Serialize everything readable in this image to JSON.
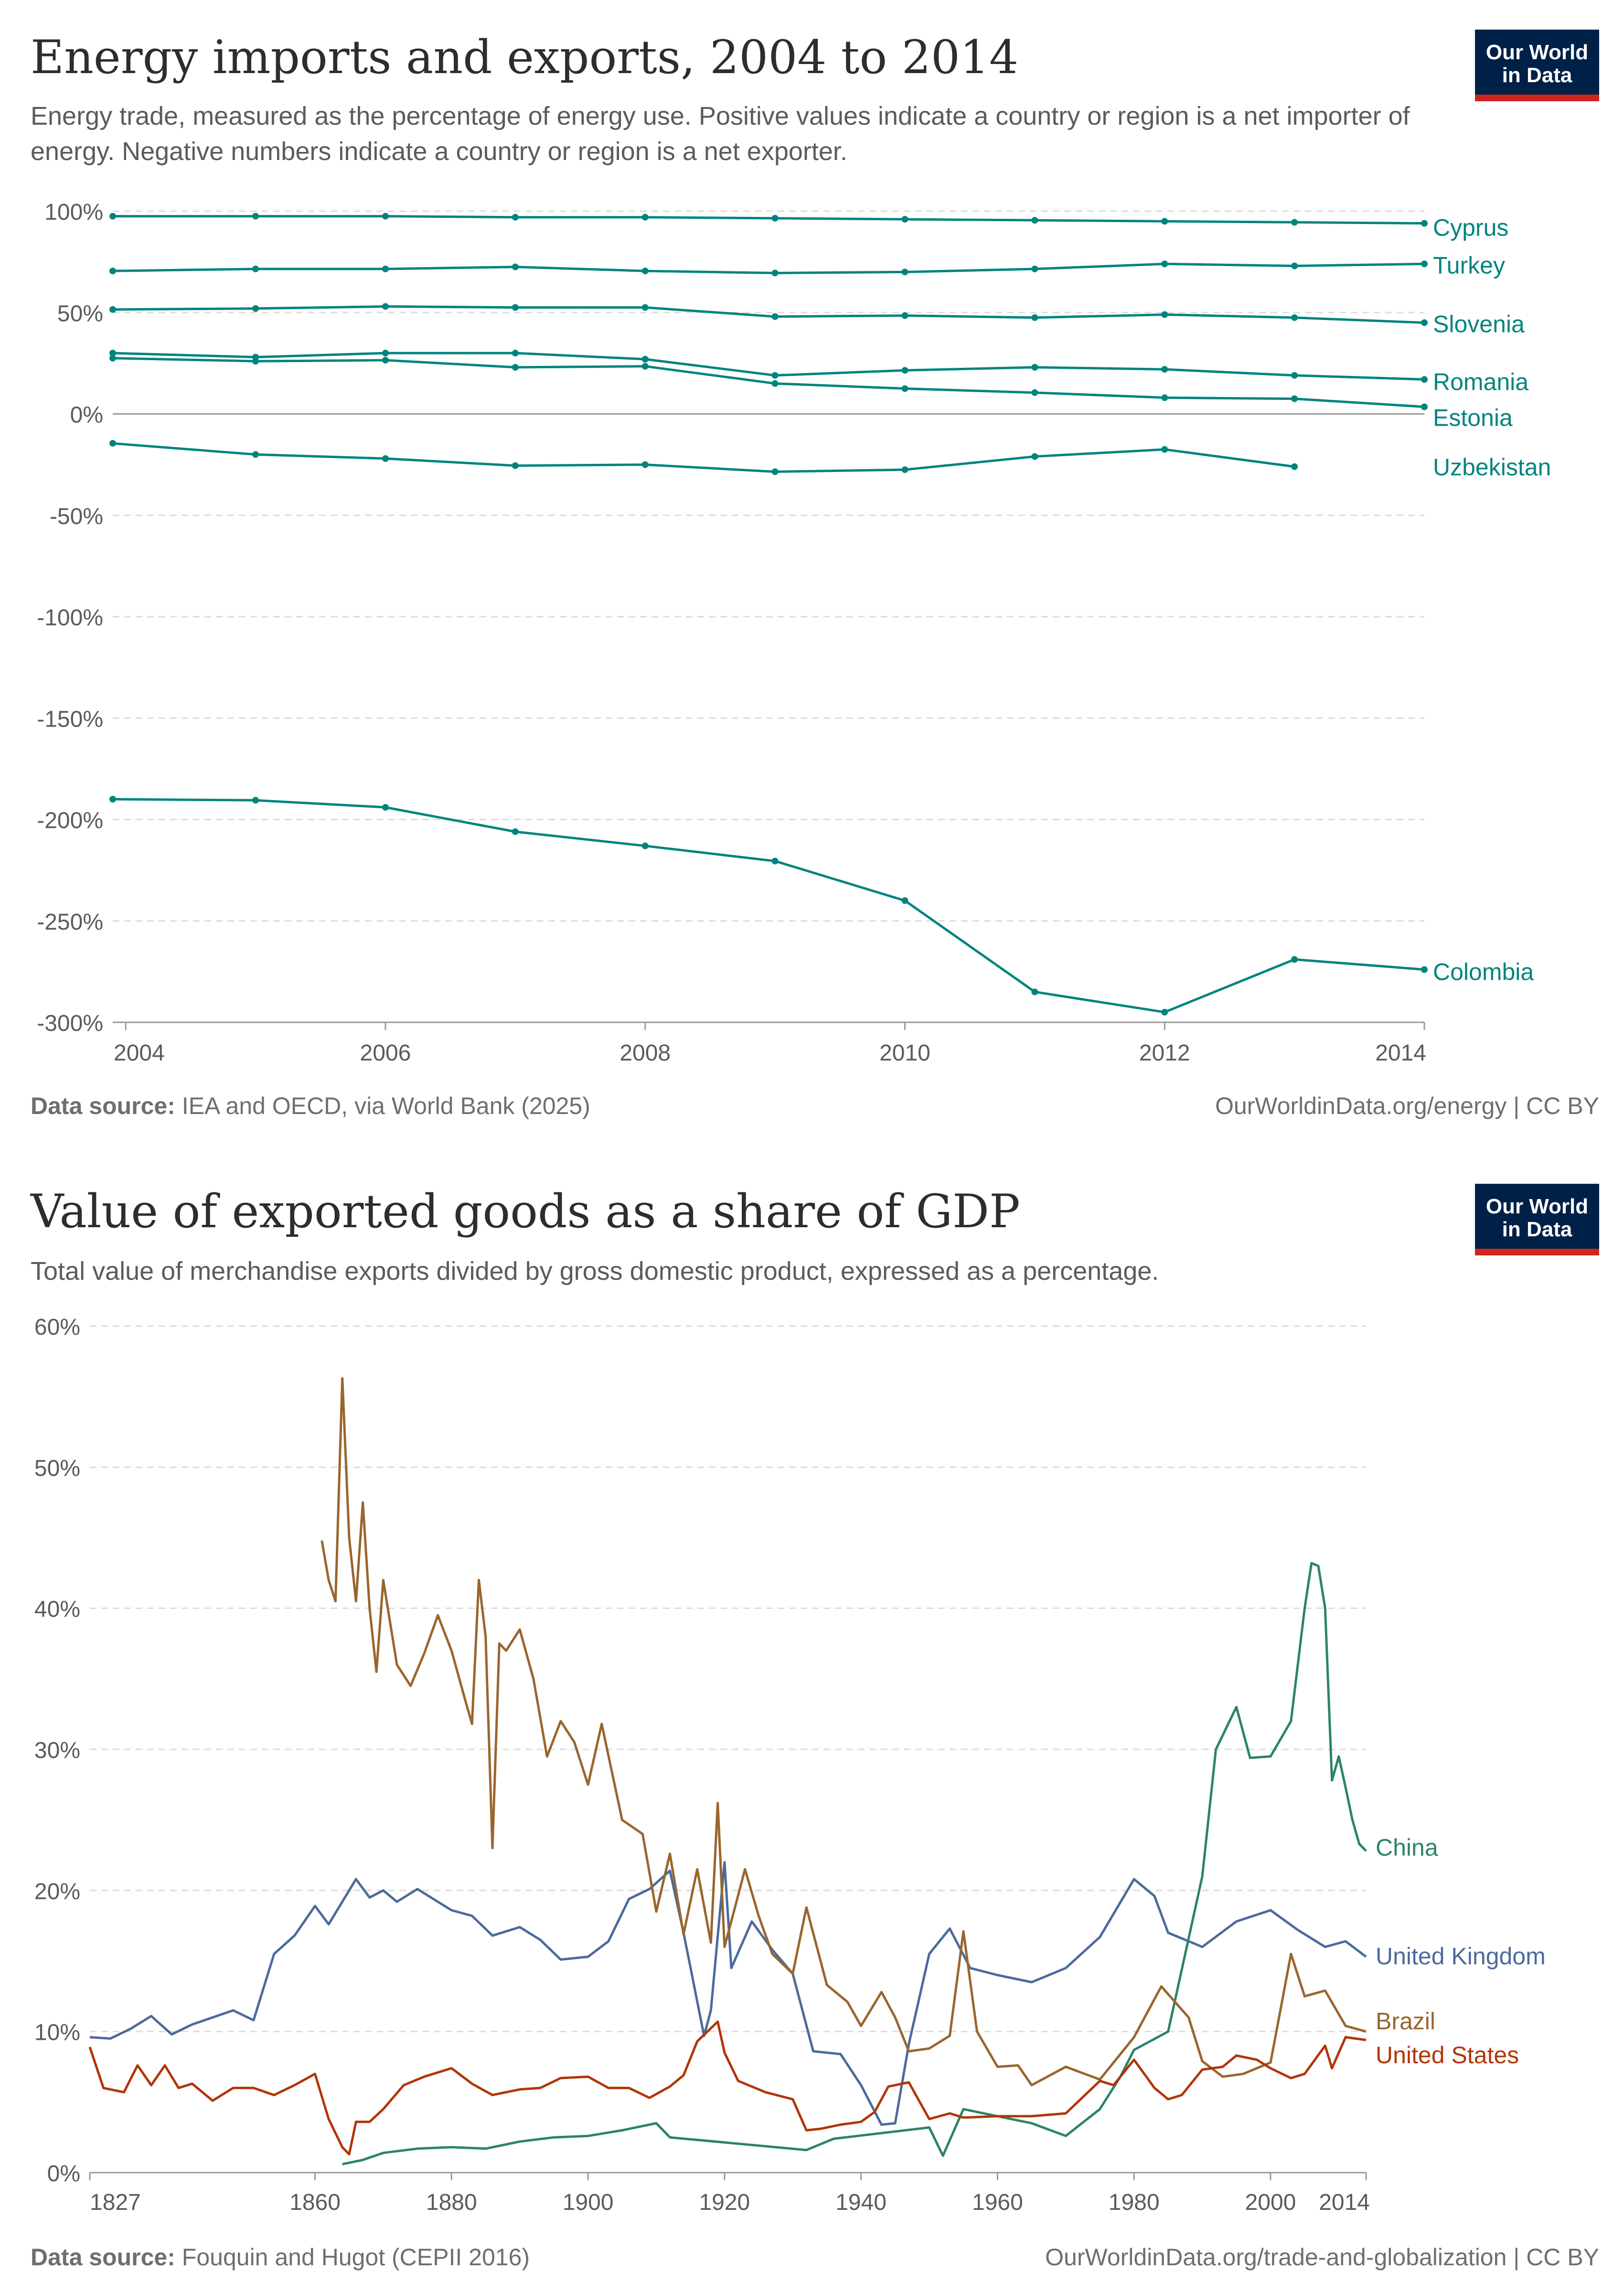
{
  "colors": {
    "energy": "#00847e",
    "china": "#2c8465",
    "uk": "#4c6a9c",
    "brazil": "#9a652e",
    "us": "#b13507",
    "grid": "#dddddd",
    "axis": "#5b5b5b",
    "zero": "#9a9a9a"
  },
  "logo": {
    "line1": "Our World",
    "line2": "in Data"
  },
  "chart_data": [
    {
      "type": "line",
      "title": "Energy imports and exports, 2004 to 2014",
      "subtitle": "Energy trade, measured as the percentage of energy use. Positive values indicate a country or region is a net importer of energy. Negative numbers indicate a country or region is a net exporter.",
      "xlabel": "",
      "ylabel": "",
      "xlim": [
        2003.9,
        2014
      ],
      "ylim": [
        -300,
        100
      ],
      "yticks": [
        100,
        50,
        0,
        -50,
        -100,
        -150,
        -200,
        -250,
        -300
      ],
      "ytick_labels": [
        "100%",
        "50%",
        "0%",
        "-50%",
        "-100%",
        "-150%",
        "-200%",
        "-250%",
        "-300%"
      ],
      "xticks": [
        2004,
        2006,
        2008,
        2010,
        2012,
        2014
      ],
      "xtick_labels": [
        "2004",
        "2006",
        "2008",
        "2010",
        "2012",
        "2014"
      ],
      "grid": true,
      "legend": "right",
      "series": [
        {
          "name": "Cyprus",
          "x": [
            2003.9,
            2005,
            2006,
            2007,
            2008,
            2009,
            2010,
            2011,
            2012,
            2013,
            2014
          ],
          "values": [
            97.5,
            97.5,
            97.5,
            97,
            97,
            96.5,
            96,
            95.5,
            95,
            94.5,
            94
          ]
        },
        {
          "name": "Turkey",
          "x": [
            2003.9,
            2005,
            2006,
            2007,
            2008,
            2009,
            2010,
            2011,
            2012,
            2013,
            2014
          ],
          "values": [
            70.5,
            71.5,
            71.5,
            72.5,
            70.5,
            69.5,
            70,
            71.5,
            74,
            73,
            74
          ]
        },
        {
          "name": "Slovenia",
          "x": [
            2003.9,
            2005,
            2006,
            2007,
            2008,
            2009,
            2010,
            2011,
            2012,
            2013,
            2014
          ],
          "values": [
            51.5,
            52,
            53,
            52.5,
            52.5,
            48,
            48.5,
            47.5,
            49,
            47.5,
            45
          ]
        },
        {
          "name": "Romania",
          "x": [
            2003.9,
            2005,
            2006,
            2007,
            2008,
            2009,
            2010,
            2011,
            2012,
            2013,
            2014
          ],
          "values": [
            30,
            28,
            30,
            30,
            27,
            19,
            21.5,
            23,
            22,
            19,
            17
          ]
        },
        {
          "name": "Estonia",
          "x": [
            2003.9,
            2005,
            2006,
            2007,
            2008,
            2009,
            2010,
            2011,
            2012,
            2013,
            2014
          ],
          "values": [
            27.5,
            26,
            26.5,
            23,
            23.5,
            15,
            12.5,
            10.5,
            8,
            7.5,
            3.5
          ]
        },
        {
          "name": "Uzbekistan",
          "x": [
            2003.9,
            2005,
            2006,
            2007,
            2008,
            2009,
            2010,
            2011,
            2012,
            2013
          ],
          "values": [
            -14.5,
            -20,
            -22,
            -25.5,
            -25,
            -28.5,
            -27.5,
            -21,
            -17.5,
            -26
          ]
        },
        {
          "name": "Colombia",
          "x": [
            2003.9,
            2005,
            2006,
            2007,
            2008,
            2009,
            2010,
            2011,
            2012,
            2013,
            2014
          ],
          "values": [
            -190,
            -190.5,
            -194,
            -206,
            -213,
            -220.5,
            -240,
            -285,
            -295,
            -269,
            -274
          ]
        }
      ],
      "source_label": "Data source:",
      "source_text": "IEA and OECD, via World Bank (2025)",
      "footer_right": "OurWorldinData.org/energy | CC BY"
    },
    {
      "type": "line",
      "title": "Value of exported goods as a share of GDP",
      "subtitle": "Total value of merchandise exports divided by gross domestic product, expressed as a percentage.",
      "xlabel": "",
      "ylabel": "",
      "xlim": [
        1827,
        2014
      ],
      "ylim": [
        0,
        60
      ],
      "yticks": [
        60,
        50,
        40,
        30,
        20,
        10,
        0
      ],
      "ytick_labels": [
        "60%",
        "50%",
        "40%",
        "30%",
        "20%",
        "10%",
        "0%"
      ],
      "xticks": [
        1827,
        1860,
        1880,
        1900,
        1920,
        1940,
        1960,
        1980,
        2000,
        2014
      ],
      "xtick_labels": [
        "1827",
        "1860",
        "1880",
        "1900",
        "1920",
        "1940",
        "1960",
        "1980",
        "2000",
        "2014"
      ],
      "grid": true,
      "legend": "right",
      "series": [
        {
          "name": "China",
          "x": [
            1864,
            1867,
            1870,
            1875,
            1880,
            1885,
            1890,
            1895,
            1900,
            1905,
            1910,
            1912,
            1932,
            1936,
            1950,
            1952,
            1955,
            1960,
            1965,
            1970,
            1975,
            1978,
            1980,
            1985,
            1990,
            1992,
            1995,
            1997,
            2000,
            2003,
            2005,
            2006,
            2007,
            2008,
            2009,
            2010,
            2011,
            2012,
            2013,
            2014
          ],
          "values": [
            0.6,
            0.9,
            1.4,
            1.7,
            1.8,
            1.7,
            2.2,
            2.5,
            2.6,
            3.0,
            3.5,
            2.5,
            1.6,
            2.4,
            3.2,
            1.2,
            4.5,
            4.0,
            3.5,
            2.6,
            4.5,
            6.8,
            8.7,
            10.0,
            21.0,
            30.0,
            33.0,
            29.4,
            29.5,
            32.0,
            40.0,
            43.2,
            43.0,
            40.0,
            27.8,
            29.5,
            27.3,
            25.0,
            23.3,
            22.8
          ]
        },
        {
          "name": "United Kingdom",
          "x": [
            1827,
            1830,
            1833,
            1836,
            1839,
            1842,
            1845,
            1848,
            1851,
            1854,
            1857,
            1860,
            1862,
            1866,
            1868,
            1870,
            1872,
            1875,
            1880,
            1883,
            1886,
            1890,
            1893,
            1896,
            1900,
            1903,
            1906,
            1909,
            1912,
            1914,
            1917,
            1918,
            1920,
            1921,
            1924,
            1927,
            1930,
            1933,
            1937,
            1940,
            1943,
            1945,
            1947,
            1950,
            1953,
            1956,
            1960,
            1965,
            1970,
            1975,
            1980,
            1983,
            1985,
            1990,
            1995,
            2000,
            2004,
            2008,
            2011,
            2014
          ],
          "values": [
            9.6,
            9.5,
            10.2,
            11.1,
            9.8,
            10.5,
            11.0,
            11.5,
            10.8,
            15.5,
            16.8,
            18.9,
            17.6,
            20.8,
            19.5,
            20.0,
            19.2,
            20.1,
            18.6,
            18.2,
            16.8,
            17.4,
            16.5,
            15.1,
            15.3,
            16.4,
            19.4,
            20.1,
            21.4,
            17.0,
            9.7,
            11.5,
            22.0,
            14.5,
            17.8,
            15.8,
            14.1,
            8.6,
            8.4,
            6.2,
            3.4,
            3.5,
            9.1,
            15.5,
            17.3,
            14.5,
            14.0,
            13.5,
            14.5,
            16.7,
            20.8,
            19.6,
            17.0,
            16.0,
            17.8,
            18.6,
            17.2,
            16.0,
            16.4,
            15.3
          ]
        },
        {
          "name": "Brazil",
          "x": [
            1861,
            1862,
            1863,
            1864,
            1865,
            1866,
            1867,
            1868,
            1869,
            1870,
            1872,
            1874,
            1876,
            1878,
            1880,
            1882,
            1883,
            1884,
            1885,
            1886,
            1887,
            1888,
            1890,
            1892,
            1894,
            1896,
            1898,
            1900,
            1902,
            1905,
            1908,
            1910,
            1912,
            1914,
            1916,
            1918,
            1919,
            1920,
            1923,
            1925,
            1927,
            1930,
            1932,
            1935,
            1938,
            1940,
            1943,
            1945,
            1947,
            1950,
            1953,
            1955,
            1957,
            1960,
            1963,
            1965,
            1970,
            1975,
            1980,
            1984,
            1988,
            1990,
            1993,
            1996,
            2000,
            2003,
            2005,
            2008,
            2011,
            2014
          ],
          "values": [
            44.8,
            42.0,
            40.5,
            56.3,
            45.0,
            40.5,
            47.5,
            40.0,
            35.5,
            42.0,
            36.0,
            34.5,
            36.8,
            39.5,
            37.0,
            33.5,
            31.8,
            42.0,
            38.0,
            23.0,
            37.5,
            37.0,
            38.5,
            35.0,
            29.5,
            32.0,
            30.5,
            27.5,
            31.8,
            25.0,
            24.0,
            18.5,
            22.6,
            16.9,
            21.5,
            16.3,
            26.2,
            16.0,
            21.5,
            18.2,
            15.5,
            14.1,
            18.8,
            13.3,
            12.1,
            10.4,
            12.8,
            11.0,
            8.6,
            8.8,
            9.7,
            17.1,
            10.0,
            7.5,
            7.6,
            6.2,
            7.5,
            6.6,
            9.6,
            13.2,
            11.0,
            7.9,
            6.8,
            7.0,
            7.8,
            15.5,
            12.5,
            12.9,
            10.4,
            10.0
          ]
        },
        {
          "name": "United States",
          "x": [
            1827,
            1829,
            1832,
            1834,
            1836,
            1838,
            1840,
            1842,
            1845,
            1848,
            1851,
            1854,
            1857,
            1860,
            1862,
            1864,
            1865,
            1866,
            1868,
            1870,
            1873,
            1876,
            1880,
            1883,
            1886,
            1890,
            1893,
            1896,
            1900,
            1903,
            1906,
            1909,
            1912,
            1914,
            1916,
            1919,
            1920,
            1922,
            1926,
            1930,
            1932,
            1934,
            1937,
            1940,
            1942,
            1944,
            1947,
            1950,
            1953,
            1955,
            1960,
            1965,
            1970,
            1975,
            1977,
            1980,
            1983,
            1985,
            1987,
            1990,
            1993,
            1995,
            1998,
            2000,
            2003,
            2005,
            2008,
            2009,
            2011,
            2014
          ],
          "values": [
            8.9,
            6.0,
            5.7,
            7.6,
            6.2,
            7.6,
            6.0,
            6.3,
            5.1,
            6.0,
            6.0,
            5.5,
            6.2,
            7.0,
            3.8,
            1.8,
            1.3,
            3.6,
            3.6,
            4.5,
            6.2,
            6.8,
            7.4,
            6.3,
            5.5,
            5.9,
            6.0,
            6.7,
            6.8,
            6.0,
            6.0,
            5.3,
            6.1,
            6.9,
            9.3,
            10.7,
            8.5,
            6.5,
            5.7,
            5.2,
            3.0,
            3.1,
            3.4,
            3.6,
            4.3,
            6.1,
            6.4,
            3.8,
            4.2,
            3.9,
            4.0,
            4.0,
            4.2,
            6.5,
            6.2,
            8.0,
            6.0,
            5.2,
            5.5,
            7.3,
            7.5,
            8.3,
            8.0,
            7.4,
            6.7,
            7.0,
            9.0,
            7.4,
            9.6,
            9.4
          ]
        }
      ],
      "source_label": "Data source:",
      "source_text": "Fouquin and Hugot (CEPII 2016)",
      "footer_right": "OurWorldinData.org/trade-and-globalization | CC BY"
    }
  ]
}
